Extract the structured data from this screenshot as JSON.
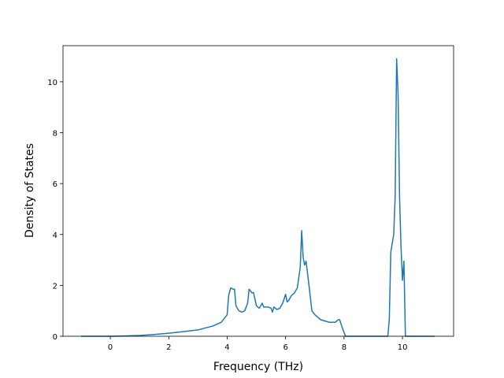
{
  "chart_data": {
    "type": "line",
    "x_label": "Frequency (THz)",
    "y_label": "Density of States",
    "xlim": [
      -1.62,
      11.75
    ],
    "ylim": [
      0,
      11.42
    ],
    "xticks": [
      0,
      2,
      4,
      6,
      8,
      10
    ],
    "yticks": [
      0,
      2,
      4,
      6,
      8,
      10
    ],
    "color": "#1f77b4",
    "x": [
      -1.0,
      0,
      0.5,
      1,
      1.5,
      2,
      2.5,
      3,
      3.5,
      3.8,
      4.0,
      4.05,
      4.12,
      4.2,
      4.25,
      4.3,
      4.4,
      4.5,
      4.6,
      4.7,
      4.75,
      4.85,
      4.9,
      5.0,
      5.1,
      5.2,
      5.25,
      5.4,
      5.5,
      5.55,
      5.6,
      5.7,
      5.8,
      5.9,
      6.0,
      6.05,
      6.1,
      6.2,
      6.3,
      6.4,
      6.5,
      6.55,
      6.6,
      6.65,
      6.7,
      6.8,
      6.9,
      7.0,
      7.2,
      7.5,
      7.7,
      7.8,
      7.85,
      7.95,
      8.05,
      9.5,
      9.55,
      9.6,
      9.7,
      9.75,
      9.8,
      9.85,
      9.9,
      9.95,
      10.0,
      10.05,
      10.1,
      11.1
    ],
    "values": [
      0,
      0,
      0.01,
      0.03,
      0.07,
      0.12,
      0.18,
      0.25,
      0.4,
      0.55,
      0.85,
      1.6,
      1.9,
      1.85,
      1.85,
      1.2,
      1.0,
      0.95,
      1.0,
      1.3,
      1.85,
      1.7,
      1.72,
      1.2,
      1.1,
      1.3,
      1.15,
      1.15,
      1.1,
      0.95,
      1.15,
      1.05,
      1.1,
      1.3,
      1.65,
      1.35,
      1.4,
      1.6,
      1.7,
      1.9,
      2.7,
      4.15,
      3.1,
      2.8,
      2.95,
      2.0,
      1.0,
      0.85,
      0.65,
      0.55,
      0.55,
      0.65,
      0.65,
      0.3,
      0,
      0,
      0.7,
      3.3,
      4.0,
      5.5,
      10.9,
      9.5,
      5.5,
      3.5,
      2.2,
      2.95,
      0,
      0
    ]
  }
}
